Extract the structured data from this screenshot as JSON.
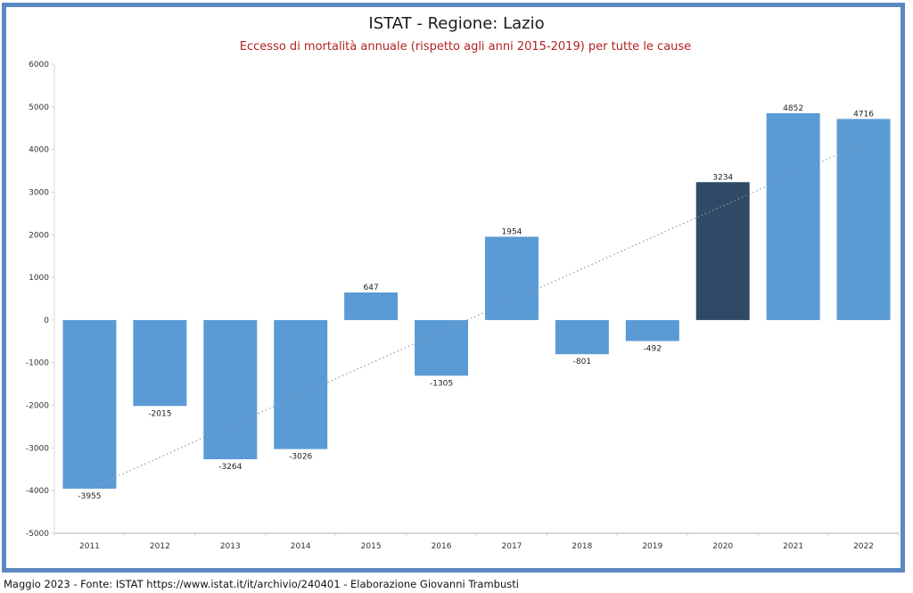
{
  "chart_data": {
    "type": "bar",
    "title": "ISTAT - Regione: Lazio",
    "subtitle": "Eccesso di mortalità annuale (rispetto agli anni 2015-2019) per tutte le cause",
    "xlabel": "",
    "ylabel": "",
    "categories": [
      "2011",
      "2012",
      "2013",
      "2014",
      "2015",
      "2016",
      "2017",
      "2018",
      "2019",
      "2020",
      "2021",
      "2022"
    ],
    "values": [
      -3955,
      -2015,
      -3264,
      -3026,
      647,
      -1305,
      1954,
      -801,
      -492,
      3234,
      4852,
      4716
    ],
    "data_labels": [
      "-3955",
      "-2015",
      "-3264",
      "-3026",
      "647",
      "-1305",
      "1954",
      "-801",
      "-492",
      "3234",
      "4852",
      "4716"
    ],
    "ylim": [
      -5000,
      6000
    ],
    "yticks": [
      6000,
      5000,
      4000,
      3000,
      2000,
      1000,
      0,
      -1000,
      -2000,
      -3000,
      -4000,
      -5000
    ],
    "grid": false,
    "legend": "none",
    "highlighted_category": "2020",
    "colors": {
      "bar": "#5b9bd5",
      "highlight_bar": "#2e4a66",
      "trendline": "#8a9bb0",
      "frame": "#5b87c3",
      "subtitle": "#b22222"
    },
    "trendline": {
      "type": "linear",
      "style": "dotted",
      "from_category": "2011",
      "to_category": "2022",
      "start_value": -3955,
      "end_value": 4150
    }
  },
  "footer": "Maggio 2023 - Fonte: ISTAT https://www.istat.it/it/archivio/240401 - Elaborazione Giovanni Trambusti"
}
